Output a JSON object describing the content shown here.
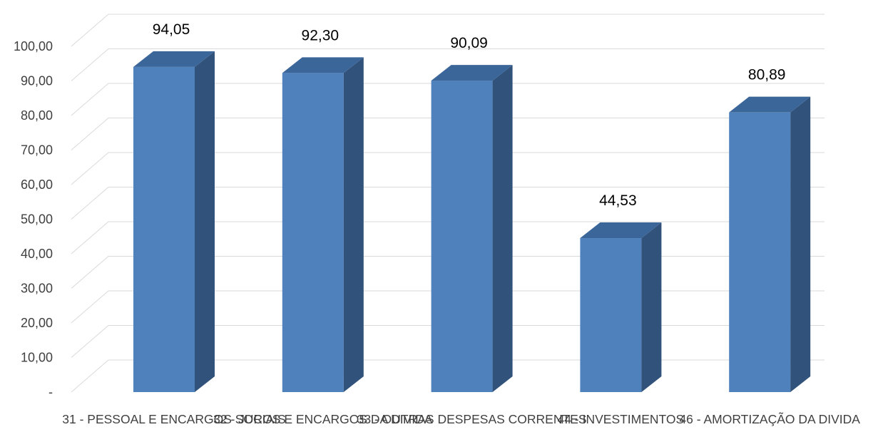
{
  "chart_data": {
    "type": "bar",
    "style": "3d-column",
    "categories": [
      "31 - PESSOAL E ENCARGOS SOCIAIS",
      "32 - JUROS E ENCARGOS DA DIVIDA",
      "33 - OUTRAS DESPESAS CORRENTES",
      "44 - INVESTIMENTOS",
      "46 - AMORTIZAÇÃO DA DIVIDA"
    ],
    "values": [
      94.05,
      92.3,
      90.09,
      44.53,
      80.89
    ],
    "value_labels": [
      "94,05",
      "92,30",
      "90,09",
      "44,53",
      "80,89"
    ],
    "y_ticks": [
      "-",
      "10,00",
      "20,00",
      "30,00",
      "40,00",
      "50,00",
      "60,00",
      "70,00",
      "80,00",
      "90,00",
      "100,00"
    ],
    "ylim": [
      0,
      100
    ],
    "grid": true,
    "legend": "none",
    "colors": {
      "front": "#4f81bd",
      "side": "#31527a",
      "top": "#3b669a",
      "grid": "#d9d9d9"
    }
  }
}
